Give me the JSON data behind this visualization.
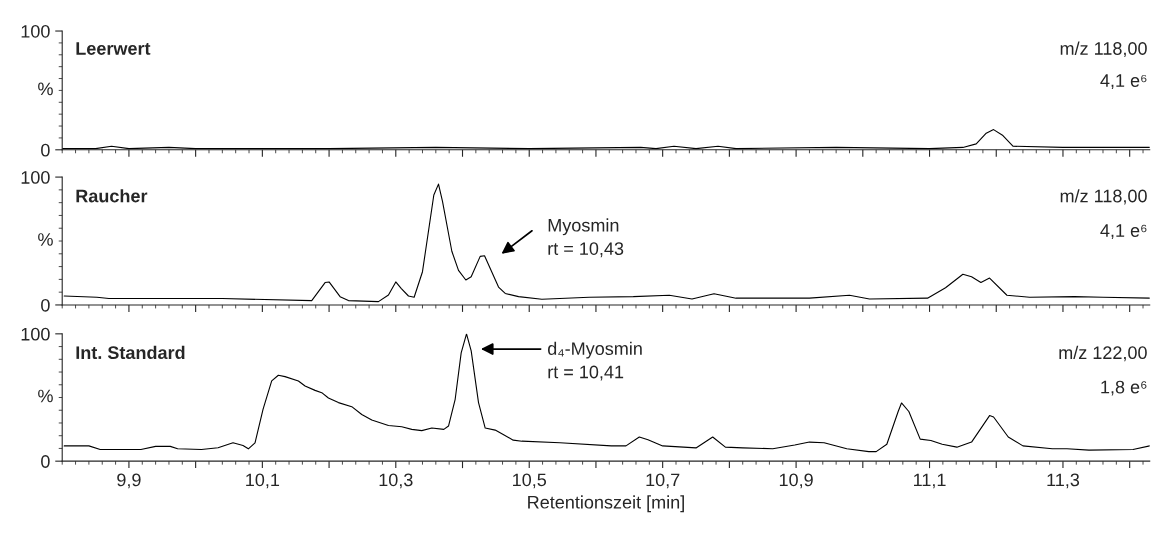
{
  "chart_data": [
    {
      "type": "line",
      "xlim": [
        9.8,
        11.43
      ],
      "ylim": [
        0,
        100
      ],
      "tick_labels": "y",
      "xticks": [
        {
          "value": 9.9,
          "label": null
        },
        {
          "value": 10.0,
          "label": null
        },
        {
          "value": 10.1,
          "label": null
        },
        {
          "value": 10.2,
          "label": null
        },
        {
          "value": 10.3,
          "label": null
        },
        {
          "value": 10.4,
          "label": null
        },
        {
          "value": 10.5,
          "label": null
        },
        {
          "value": 10.6,
          "label": null
        },
        {
          "value": 10.7,
          "label": null
        },
        {
          "value": 10.8,
          "label": null
        },
        {
          "value": 10.9,
          "label": null
        },
        {
          "value": 11.0,
          "label": null
        },
        {
          "value": 11.1,
          "label": null
        },
        {
          "value": 11.2,
          "label": null
        },
        {
          "value": 11.3,
          "label": null
        },
        {
          "value": 11.4,
          "label": null
        }
      ],
      "yticks": [
        0,
        100
      ],
      "ylabel": "%",
      "annotations": [
        "Leerwert",
        "m/z 118,00",
        "4,1 e⁶"
      ],
      "series": [
        {
          "color": "#000000",
          "x": [
            9.8,
            9.85,
            9.874,
            9.9,
            9.96,
            10.0,
            10.2,
            10.36,
            10.5,
            10.667,
            10.69,
            10.717,
            10.75,
            10.783,
            10.81,
            10.96,
            11.1,
            11.15,
            11.17,
            11.185,
            11.196,
            11.21,
            11.225,
            11.3,
            11.43
          ],
          "values": [
            1,
            1,
            3,
            1,
            2,
            1,
            1,
            2,
            1,
            2,
            1,
            3,
            1,
            3,
            1,
            2,
            1,
            2,
            5,
            14,
            17,
            12,
            3,
            2,
            2
          ]
        }
      ]
    },
    {
      "type": "line",
      "xlim": [
        9.8,
        11.43
      ],
      "ylim": [
        0,
        100
      ],
      "tick_labels": "y",
      "xticks": [
        {
          "value": 9.9,
          "label": null
        },
        {
          "value": 10.0,
          "label": null
        },
        {
          "value": 10.1,
          "label": null
        },
        {
          "value": 10.2,
          "label": null
        },
        {
          "value": 10.3,
          "label": null
        },
        {
          "value": 10.4,
          "label": null
        },
        {
          "value": 10.5,
          "label": null
        },
        {
          "value": 10.6,
          "label": null
        },
        {
          "value": 10.7,
          "label": null
        },
        {
          "value": 10.8,
          "label": null
        },
        {
          "value": 10.9,
          "label": null
        },
        {
          "value": 11.0,
          "label": null
        },
        {
          "value": 11.1,
          "label": null
        },
        {
          "value": 11.2,
          "label": null
        },
        {
          "value": 11.3,
          "label": null
        },
        {
          "value": 11.4,
          "label": null
        }
      ],
      "yticks": [
        0,
        100
      ],
      "ylabel": "%",
      "annotations": [
        "Raucher",
        "m/z 118,00",
        "4,1 e⁶",
        "Myosmin\nrt = 10,43"
      ],
      "series": [
        {
          "color": "#000000",
          "x": [
            9.803,
            9.852,
            9.87,
            10.04,
            10.174,
            10.194,
            10.2,
            10.2165,
            10.229,
            10.274,
            10.289,
            10.3,
            10.308,
            10.319,
            10.3275,
            10.34,
            10.357,
            10.364,
            10.37,
            10.384,
            10.394,
            10.405,
            10.413,
            10.4265,
            10.433,
            10.454,
            10.464,
            10.484,
            10.519,
            10.59,
            10.656,
            10.71,
            10.744,
            10.777,
            10.81,
            10.92,
            10.98,
            11.01,
            11.097,
            11.124,
            11.15,
            11.163,
            11.177,
            11.19,
            11.216,
            11.25,
            11.317,
            11.36,
            11.43
          ],
          "values": [
            7,
            6,
            5,
            5,
            3.4,
            17.5,
            18,
            6.5,
            3.4,
            2.6,
            7.8,
            18,
            13,
            7,
            6,
            26,
            86,
            94.5,
            81,
            42,
            27,
            19.5,
            22,
            38,
            38.5,
            14,
            9,
            6.5,
            4.5,
            6,
            6.5,
            7.6,
            4.7,
            8.8,
            5.3,
            5.3,
            7.6,
            4.7,
            5.3,
            13.5,
            24,
            22,
            17.6,
            21,
            7.6,
            6,
            6.5,
            6,
            5.3
          ]
        }
      ]
    },
    {
      "type": "line",
      "xlim": [
        9.8,
        11.43
      ],
      "ylim": [
        0,
        100
      ],
      "xlabel": "Retentionszeit [min]",
      "xticks": [
        {
          "value": 9.9,
          "label": "9,9"
        },
        {
          "value": 10.0,
          "label": null
        },
        {
          "value": 10.1,
          "label": "10,1"
        },
        {
          "value": 10.2,
          "label": null
        },
        {
          "value": 10.3,
          "label": "10,3"
        },
        {
          "value": 10.4,
          "label": null
        },
        {
          "value": 10.5,
          "label": "10,5"
        },
        {
          "value": 10.6,
          "label": null
        },
        {
          "value": 10.7,
          "label": "10,7"
        },
        {
          "value": 10.8,
          "label": null
        },
        {
          "value": 10.9,
          "label": "10,9"
        },
        {
          "value": 11.0,
          "label": null
        },
        {
          "value": 11.1,
          "label": "11,1"
        },
        {
          "value": 11.2,
          "label": null
        },
        {
          "value": 11.3,
          "label": "11,3"
        },
        {
          "value": 11.4,
          "label": null
        }
      ],
      "yticks": [
        0,
        100
      ],
      "ylabel": "%",
      "annotations": [
        "Int. Standard",
        "m/z 122,00",
        "1,8 e⁶",
        "d₄-Myosmin\nrt = 10,41"
      ],
      "series": [
        {
          "color": "#000000",
          "x": [
            9.803,
            9.84,
            9.857,
            9.918,
            9.94,
            9.962,
            9.973,
            10.0086,
            10.0336,
            10.056,
            10.071,
            10.079,
            10.089,
            10.101,
            10.114,
            10.124,
            10.134,
            10.154,
            10.164,
            10.179,
            10.189,
            10.199,
            10.214,
            10.234,
            10.249,
            10.264,
            10.289,
            10.309,
            10.324,
            10.339,
            10.354,
            10.372,
            10.379,
            10.389,
            10.398,
            10.406,
            10.413,
            10.424,
            10.434,
            10.449,
            10.461,
            10.476,
            10.489,
            10.546,
            10.623,
            10.645,
            10.665,
            10.678,
            10.7,
            10.75,
            10.775,
            10.794,
            10.82,
            10.865,
            10.898,
            10.92,
            10.942,
            10.976,
            11.009,
            11.02,
            11.036,
            11.053,
            11.058,
            11.069,
            11.086,
            11.102,
            11.119,
            11.141,
            11.163,
            11.19,
            11.196,
            11.218,
            11.24,
            11.284,
            11.306,
            11.339,
            11.405,
            11.43
          ],
          "values": [
            12,
            12,
            9.2,
            9.2,
            11.6,
            11.6,
            9.8,
            9.2,
            10.5,
            14.4,
            12.3,
            9.7,
            14.4,
            40.7,
            63,
            67.5,
            66.4,
            63,
            59,
            55.6,
            53.8,
            49.6,
            46,
            42.8,
            36.7,
            32.3,
            28,
            27,
            25,
            24,
            26,
            25,
            27.6,
            48.6,
            85,
            100,
            86.6,
            46,
            26,
            24.4,
            21,
            16.5,
            15.7,
            14.5,
            12,
            12,
            19,
            16.8,
            12,
            10.4,
            19,
            11,
            10.4,
            9.8,
            12.7,
            15,
            14.5,
            9.8,
            7.5,
            7.5,
            13.3,
            39,
            45.7,
            39,
            17.3,
            16.2,
            13.3,
            11,
            15,
            35.8,
            34.7,
            19,
            12,
            9.8,
            9.8,
            8.7,
            9.2,
            12
          ]
        }
      ]
    }
  ]
}
